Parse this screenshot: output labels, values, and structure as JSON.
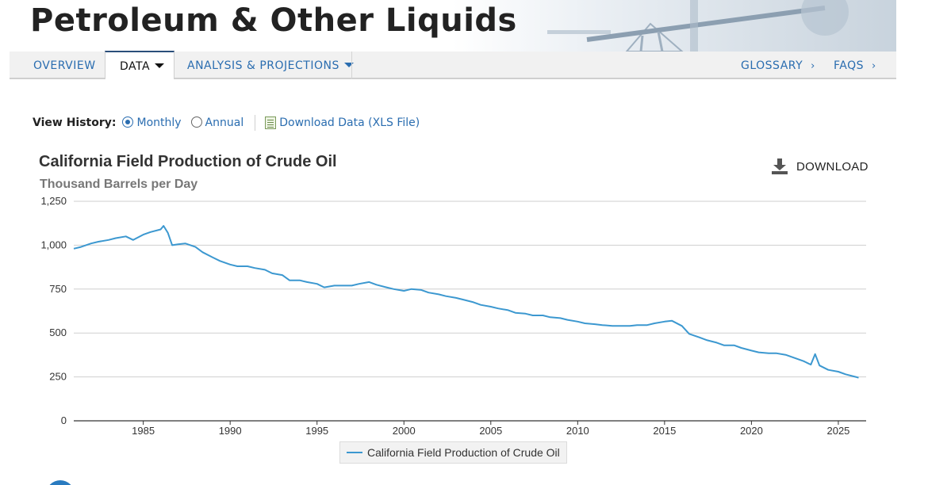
{
  "header": {
    "title": "Petroleum & Other Liquids"
  },
  "nav": {
    "overview": "OVERVIEW",
    "data": "DATA",
    "analysis": "ANALYSIS & PROJECTIONS",
    "glossary": "GLOSSARY",
    "faqs": "FAQS",
    "chevron": "›"
  },
  "history": {
    "label": "View History:",
    "options": [
      "Monthly",
      "Annual"
    ],
    "selected": "Monthly",
    "download_link": "Download Data (XLS File)"
  },
  "chart": {
    "download_label": "DOWNLOAD",
    "legend_label": "California Field Production of Crude Oil"
  },
  "colors": {
    "accent": "#2a6db0",
    "series": "#3c98d0"
  },
  "icons": [
    "download-icon",
    "xls-file-icon",
    "caret-down-icon",
    "chevron-right-icon"
  ],
  "chart_data": {
    "type": "line",
    "title": "California Field Production of Crude Oil",
    "ylabel": "Thousand Barrels per Day",
    "xlabel": "",
    "ylim": [
      0,
      1250
    ],
    "xlim": [
      1981,
      2026.6
    ],
    "yticks": [
      "0",
      "250",
      "500",
      "750",
      "1,000",
      "1,250"
    ],
    "xticks": [
      "1985",
      "1990",
      "1995",
      "2000",
      "2005",
      "2010",
      "2015",
      "2020",
      "2025"
    ],
    "grid": true,
    "legend_position": "bottom-center",
    "series": [
      {
        "name": "California Field Production of Crude Oil",
        "x": [
          "1981-01",
          "1981-06",
          "1982-01",
          "1982-06",
          "1983-01",
          "1983-06",
          "1984-01",
          "1984-06",
          "1985-01",
          "1985-06",
          "1986-01",
          "1986-03",
          "1986-06",
          "1986-09",
          "1987-01",
          "1987-06",
          "1988-01",
          "1988-06",
          "1989-01",
          "1989-06",
          "1990-01",
          "1990-06",
          "1991-01",
          "1991-06",
          "1992-01",
          "1992-06",
          "1993-01",
          "1993-06",
          "1994-01",
          "1994-06",
          "1995-01",
          "1995-06",
          "1996-01",
          "1996-06",
          "1997-01",
          "1997-06",
          "1998-01",
          "1998-06",
          "1999-01",
          "1999-06",
          "2000-01",
          "2000-06",
          "2001-01",
          "2001-06",
          "2002-01",
          "2002-06",
          "2003-01",
          "2003-06",
          "2004-01",
          "2004-06",
          "2005-01",
          "2005-06",
          "2006-01",
          "2006-06",
          "2007-01",
          "2007-06",
          "2008-01",
          "2008-06",
          "2009-01",
          "2009-06",
          "2010-01",
          "2010-06",
          "2011-01",
          "2011-06",
          "2012-01",
          "2012-06",
          "2013-01",
          "2013-06",
          "2014-01",
          "2014-06",
          "2015-01",
          "2015-06",
          "2016-01",
          "2016-06",
          "2017-01",
          "2017-06",
          "2018-01",
          "2018-06",
          "2019-01",
          "2019-06",
          "2020-01",
          "2020-06",
          "2021-01",
          "2021-06",
          "2022-01",
          "2022-06",
          "2023-01",
          "2023-06",
          "2023-09",
          "2023-12",
          "2024-06",
          "2025-01",
          "2025-06",
          "2026-01",
          "2026-03"
        ],
        "values": [
          980,
          990,
          1010,
          1020,
          1030,
          1040,
          1050,
          1030,
          1060,
          1075,
          1090,
          1110,
          1070,
          1000,
          1005,
          1010,
          990,
          960,
          930,
          910,
          890,
          880,
          880,
          870,
          860,
          840,
          830,
          800,
          800,
          790,
          780,
          760,
          770,
          770,
          770,
          780,
          790,
          775,
          760,
          750,
          740,
          750,
          745,
          730,
          720,
          710,
          700,
          690,
          675,
          660,
          650,
          640,
          630,
          615,
          610,
          600,
          600,
          590,
          585,
          575,
          565,
          555,
          550,
          545,
          540,
          540,
          540,
          545,
          545,
          555,
          565,
          570,
          540,
          495,
          475,
          460,
          445,
          430,
          430,
          415,
          400,
          390,
          385,
          385,
          375,
          360,
          340,
          320,
          380,
          315,
          290,
          280,
          265,
          250,
          245
        ]
      }
    ]
  }
}
